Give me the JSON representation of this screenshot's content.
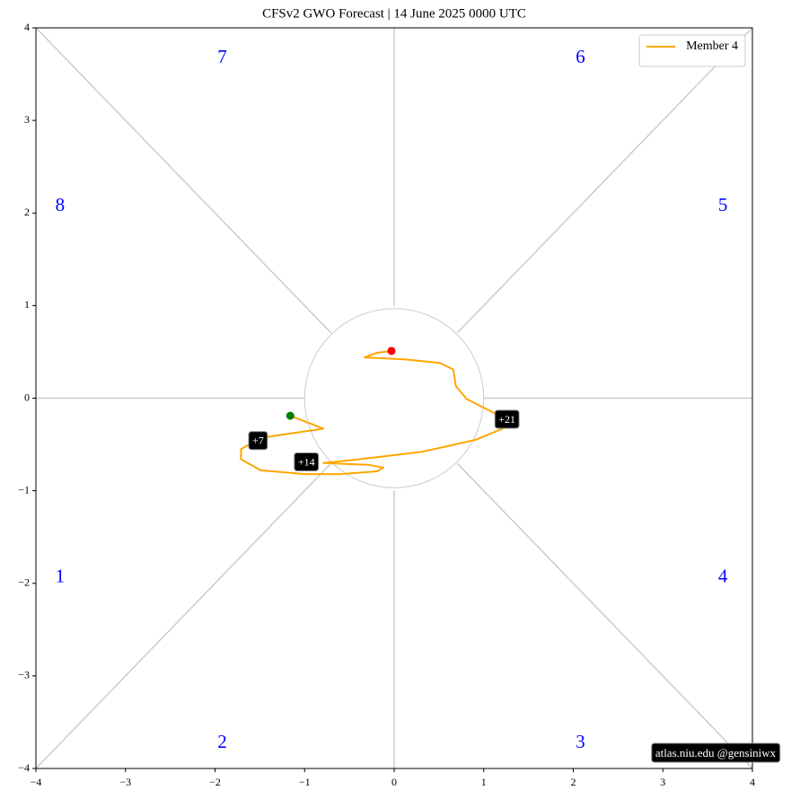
{
  "chart_data": {
    "type": "line",
    "title": "CFSv2 GWO Forecast   |   14  June  2025 0000 UTC",
    "xlim": [
      -4,
      4
    ],
    "ylim": [
      -4,
      4
    ],
    "xticks": [
      {
        "value": -4,
        "label": "−4"
      },
      {
        "value": -3,
        "label": "−3"
      },
      {
        "value": -2,
        "label": "−2"
      },
      {
        "value": -1,
        "label": "−1"
      },
      0,
      1,
      2,
      3,
      4
    ],
    "yticks": [
      {
        "value": -4,
        "label": "−4"
      },
      {
        "value": -3,
        "label": "−3"
      },
      {
        "value": -2,
        "label": "−2"
      },
      {
        "value": -1,
        "label": "−1"
      },
      0,
      1,
      2,
      3,
      4
    ],
    "legend": "upper right",
    "series": [
      {
        "name": "Member 4",
        "color": "orange",
        "x": [
          -1.16,
          -0.79,
          -1.49,
          -1.71,
          -1.71,
          -1.49,
          -0.99,
          -0.59,
          -0.19,
          -0.12,
          -0.29,
          -0.79,
          -0.39,
          0.31,
          0.91,
          1.21,
          1.16,
          0.81,
          0.69,
          0.66,
          0.51,
          0.11,
          -0.33,
          -0.19,
          -0.03
        ],
        "values": [
          -0.19,
          -0.33,
          -0.43,
          -0.55,
          -0.66,
          -0.78,
          -0.82,
          -0.82,
          -0.79,
          -0.75,
          -0.72,
          -0.7,
          -0.66,
          -0.58,
          -0.45,
          -0.33,
          -0.18,
          -0.01,
          0.13,
          0.31,
          0.38,
          0.42,
          0.44,
          0.49,
          0.51
        ]
      }
    ],
    "start_color": "green",
    "end_color": "red",
    "day_labels": [
      {
        "text": "+7",
        "x": -1.52,
        "y": -0.47
      },
      {
        "text": "+14",
        "x": -0.98,
        "y": -0.7
      },
      {
        "text": "+21",
        "x": 1.26,
        "y": -0.24
      }
    ],
    "phase_labels": [
      {
        "text": "1",
        "x": -3.73,
        "y": -1.94
      },
      {
        "text": "2",
        "x": -1.92,
        "y": -3.73
      },
      {
        "text": "3",
        "x": 2.08,
        "y": -3.73
      },
      {
        "text": "4",
        "x": 3.67,
        "y": -1.94
      },
      {
        "text": "5",
        "x": 3.67,
        "y": 2.07
      },
      {
        "text": "6",
        "x": 2.08,
        "y": 3.67
      },
      {
        "text": "7",
        "x": -1.92,
        "y": 3.67
      },
      {
        "text": "8",
        "x": -3.73,
        "y": 2.07
      }
    ],
    "phase_color": "blue",
    "watermark": "atlas.niu.edu  @gensiniwx"
  }
}
